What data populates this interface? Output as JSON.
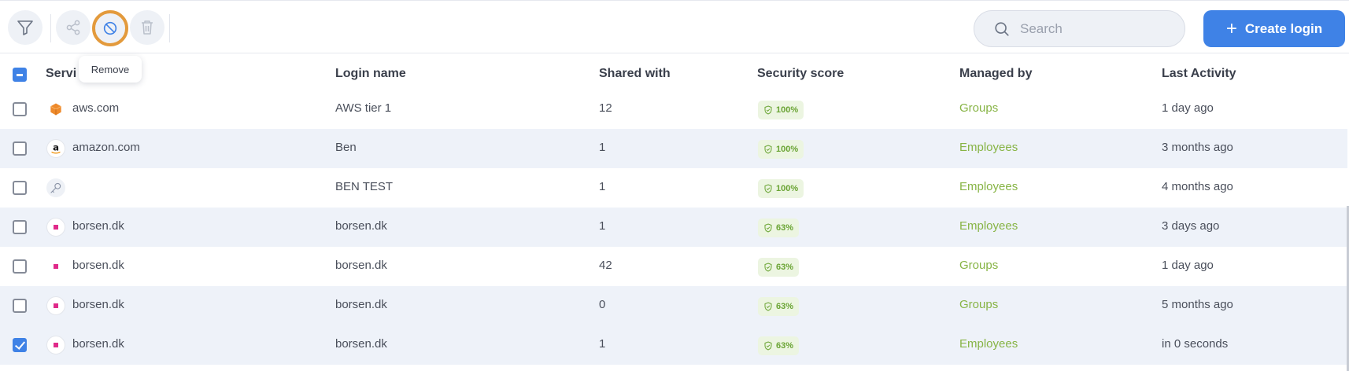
{
  "toolbar": {
    "tooltip": "Remove",
    "search_placeholder": "Search",
    "create_label": "Create login",
    "icons": {
      "filter": "filter-icon",
      "share": "share-icon",
      "remove": "block-icon",
      "delete": "trash-icon",
      "search": "search-icon",
      "plus": "plus-icon"
    }
  },
  "table": {
    "headers": {
      "service": "Servi",
      "login_name": "Login name",
      "shared_with": "Shared with",
      "security_score": "Security score",
      "managed_by": "Managed by",
      "last_activity": "Last Activity"
    },
    "select_all_state": "indeterminate",
    "rows": [
      {
        "checked": false,
        "icon": "aws-cube-icon",
        "service": "aws.com",
        "login_name": "AWS tier 1",
        "shared_with": "12",
        "score": "100%",
        "managed_by": "Groups",
        "last_activity": "1 day ago"
      },
      {
        "checked": false,
        "icon": "amazon-icon",
        "service": "amazon.com",
        "login_name": "Ben",
        "shared_with": "1",
        "score": "100%",
        "managed_by": "Employees",
        "last_activity": "3 months ago"
      },
      {
        "checked": false,
        "icon": "key-icon",
        "service": "",
        "login_name": "BEN TEST",
        "shared_with": "1",
        "score": "100%",
        "managed_by": "Employees",
        "last_activity": "4 months ago"
      },
      {
        "checked": false,
        "icon": "borsen-icon",
        "service": "borsen.dk",
        "login_name": "borsen.dk",
        "shared_with": "1",
        "score": "63%",
        "managed_by": "Employees",
        "last_activity": "3 days ago"
      },
      {
        "checked": false,
        "icon": "borsen-icon",
        "service": "borsen.dk",
        "login_name": "borsen.dk",
        "shared_with": "42",
        "score": "63%",
        "managed_by": "Groups",
        "last_activity": "1 day ago"
      },
      {
        "checked": false,
        "icon": "borsen-icon",
        "service": "borsen.dk",
        "login_name": "borsen.dk",
        "shared_with": "0",
        "score": "63%",
        "managed_by": "Groups",
        "last_activity": "5 months ago"
      },
      {
        "checked": true,
        "icon": "borsen-icon",
        "service": "borsen.dk",
        "login_name": "borsen.dk",
        "shared_with": "1",
        "score": "63%",
        "managed_by": "Employees",
        "last_activity": "in 0 seconds"
      }
    ]
  },
  "colors": {
    "accent": "#3f82e6",
    "highlight_ring": "#e39a3c",
    "score_green": "#6aa434",
    "managed_green": "#87b445",
    "row_alt": "#eef2f9"
  }
}
